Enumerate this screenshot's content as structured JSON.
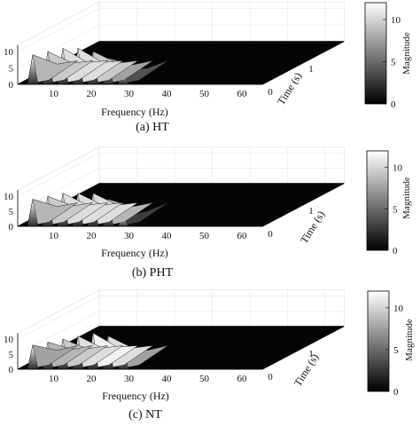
{
  "panels": [
    {
      "caption": "(a) HT",
      "chart_data": {
        "type": "surface",
        "xlabel": "Frequency (Hz)",
        "ylabel": "Time (s)",
        "colorbar_label": "Magnitude",
        "x_ticks": [
          10,
          20,
          30,
          40,
          50,
          60
        ],
        "y_ticks": [
          0,
          1
        ],
        "z_ticks": [
          0,
          5,
          10
        ],
        "colorbar_ticks": [
          0,
          5,
          10
        ],
        "xlim": [
          0,
          65
        ],
        "zlim": [
          0,
          12
        ],
        "clim": [
          0,
          12
        ],
        "grid": true,
        "colormap": "gray",
        "harmonic_peaks": [
          {
            "frequency": 4,
            "magnitude": 9
          },
          {
            "frequency": 8,
            "magnitude": 10
          },
          {
            "frequency": 12,
            "magnitude": 11
          },
          {
            "frequency": 16,
            "magnitude": 11
          },
          {
            "frequency": 20,
            "magnitude": 10
          },
          {
            "frequency": 24,
            "magnitude": 8
          },
          {
            "frequency": 28,
            "magnitude": 4
          }
        ]
      }
    },
    {
      "caption": "(b) PHT",
      "chart_data": {
        "type": "surface",
        "xlabel": "Frequency (Hz)",
        "ylabel": "Time (s)",
        "colorbar_label": "Magnitude",
        "x_ticks": [
          10,
          20,
          30,
          40,
          50,
          60
        ],
        "y_ticks": [
          0,
          1
        ],
        "z_ticks": [
          0,
          5,
          10
        ],
        "colorbar_ticks": [
          0,
          5,
          10
        ],
        "xlim": [
          0,
          65
        ],
        "zlim": [
          0,
          12
        ],
        "clim": [
          0,
          12
        ],
        "grid": true,
        "colormap": "gray",
        "harmonic_peaks": [
          {
            "frequency": 4,
            "magnitude": 9
          },
          {
            "frequency": 8,
            "magnitude": 10
          },
          {
            "frequency": 12,
            "magnitude": 11
          },
          {
            "frequency": 16,
            "magnitude": 11
          },
          {
            "frequency": 20,
            "magnitude": 11
          },
          {
            "frequency": 24,
            "magnitude": 9
          },
          {
            "frequency": 28,
            "magnitude": 3
          }
        ]
      }
    },
    {
      "caption": "(c) NT",
      "chart_data": {
        "type": "surface",
        "xlabel": "Frequency (Hz)",
        "ylabel": "Time (s)",
        "colorbar_label": "Magnitude",
        "x_ticks": [
          10,
          20,
          30,
          40,
          50,
          60
        ],
        "y_ticks": [
          0,
          1
        ],
        "z_ticks": [
          0,
          5,
          10
        ],
        "colorbar_ticks": [
          0,
          5,
          10
        ],
        "xlim": [
          0,
          65
        ],
        "zlim": [
          0,
          12
        ],
        "clim": [
          0,
          12
        ],
        "grid": true,
        "colormap": "gray",
        "harmonic_peaks": [
          {
            "frequency": 4,
            "magnitude": 8
          },
          {
            "frequency": 8,
            "magnitude": 9
          },
          {
            "frequency": 12,
            "magnitude": 10
          },
          {
            "frequency": 16,
            "magnitude": 11
          },
          {
            "frequency": 20,
            "magnitude": 12
          },
          {
            "frequency": 24,
            "magnitude": 11
          },
          {
            "frequency": 28,
            "magnitude": 8
          }
        ]
      }
    }
  ]
}
